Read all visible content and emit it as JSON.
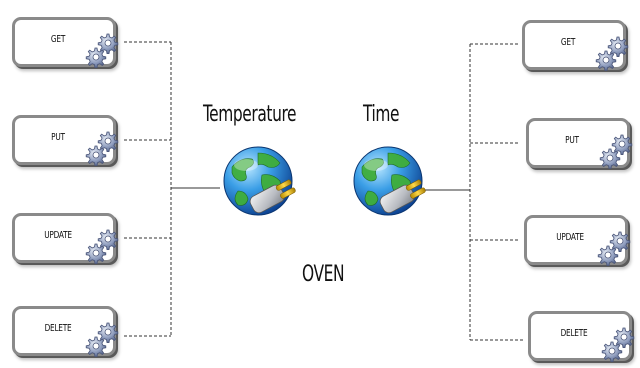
{
  "left_service": {
    "label": "Temperature",
    "operations": [
      "GET",
      "PUT",
      "UPDATE",
      "DELETE"
    ]
  },
  "right_service": {
    "label": "Time",
    "operations": [
      "GET",
      "PUT",
      "UPDATE",
      "DELETE"
    ]
  },
  "device_label": "OVEN",
  "icons": {
    "operation": "gears-icon",
    "service": "globe-plug-icon"
  }
}
